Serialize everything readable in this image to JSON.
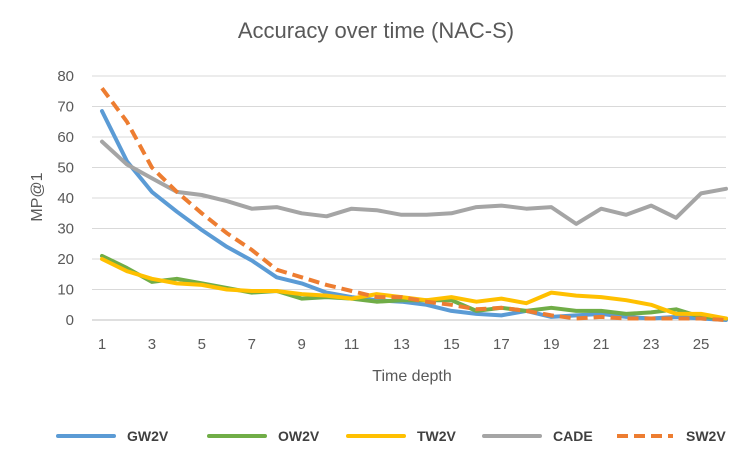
{
  "chart_data": {
    "type": "line",
    "title": "Accuracy over time (NAC-S)",
    "xlabel": "Time depth",
    "ylabel": "MP@1",
    "x": [
      1,
      2,
      3,
      4,
      5,
      6,
      7,
      8,
      9,
      10,
      11,
      12,
      13,
      14,
      15,
      16,
      17,
      18,
      19,
      20,
      21,
      22,
      23,
      24,
      25,
      26
    ],
    "xticks": [
      1,
      3,
      5,
      7,
      9,
      11,
      13,
      15,
      17,
      19,
      21,
      23,
      25
    ],
    "xticklabels": [
      "1",
      "3",
      "5",
      "7",
      "9",
      "11",
      "13",
      "15",
      "17",
      "19",
      "21",
      "23",
      "25"
    ],
    "xlim": [
      1,
      26
    ],
    "ylim": [
      0,
      80
    ],
    "yticks": [
      0,
      10,
      20,
      30,
      40,
      50,
      60,
      70,
      80
    ],
    "yticklabels": [
      "0",
      "10",
      "20",
      "30",
      "40",
      "50",
      "60",
      "70",
      "80"
    ],
    "grid": true,
    "legend_position": "bottom",
    "series": [
      {
        "name": "GW2V",
        "color": "#5B9BD5",
        "dashed": false,
        "values": [
          68.5,
          52,
          42,
          35.5,
          29.5,
          24,
          19.5,
          14,
          12,
          9,
          7.5,
          6.5,
          6,
          5,
          3,
          2,
          1.5,
          3,
          1,
          1.5,
          2,
          1,
          0.5,
          1,
          0.5,
          0
        ]
      },
      {
        "name": "OW2V",
        "color": "#70AD47",
        "dashed": false,
        "values": [
          21,
          17,
          12.5,
          13.5,
          12,
          10.5,
          9,
          9.5,
          7,
          7.5,
          7,
          6,
          6.5,
          6.5,
          6.5,
          3,
          4,
          3,
          4,
          3,
          3,
          2,
          2.5,
          3.5,
          1,
          0.5
        ]
      },
      {
        "name": "TW2V",
        "color": "#FFC000",
        "dashed": false,
        "values": [
          20,
          16,
          13.5,
          12,
          11.5,
          10,
          9.5,
          9.5,
          8.5,
          8,
          7,
          8.5,
          7.5,
          6.5,
          7.5,
          6,
          7,
          5.5,
          9,
          8,
          7.5,
          6.5,
          5,
          2,
          2,
          0.5
        ]
      },
      {
        "name": "CADE",
        "color": "#A5A5A5",
        "dashed": false,
        "values": [
          58.5,
          51,
          46.5,
          42,
          41,
          39,
          36.5,
          37,
          35,
          34,
          36.5,
          36,
          34.5,
          34.5,
          35,
          37,
          37.5,
          36.5,
          37,
          31.5,
          36.5,
          34.5,
          37.5,
          33.5,
          41.5,
          43
        ]
      },
      {
        "name": "SW2V",
        "color": "#ED7D31",
        "dashed": true,
        "values": [
          76,
          65,
          50,
          42,
          35,
          28.5,
          23,
          16.5,
          14,
          11.5,
          9.5,
          7.5,
          7.5,
          6,
          5,
          3.5,
          4,
          3,
          1.5,
          0.5,
          1,
          0.5,
          0.5,
          0.5,
          0.5,
          0
        ]
      }
    ]
  }
}
